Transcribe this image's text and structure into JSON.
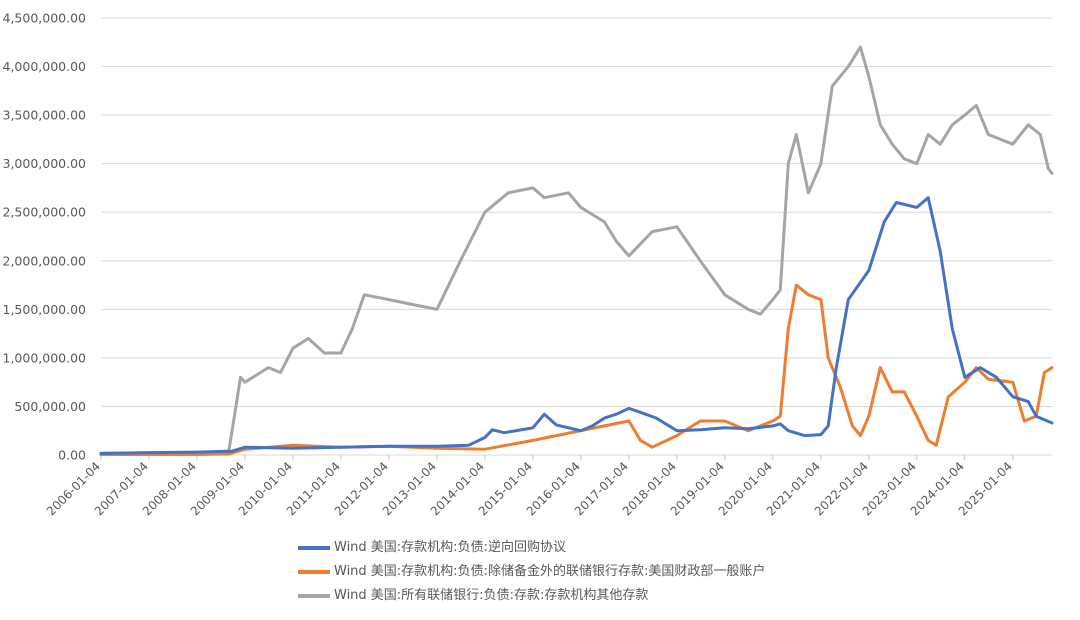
{
  "chart_data": {
    "type": "line",
    "title": "",
    "xlabel": "",
    "ylabel": "",
    "ylim": [
      0,
      4500000
    ],
    "yticks": [
      {
        "value": 0,
        "label": "0.00"
      },
      {
        "value": 500000,
        "label": "500,000.00"
      },
      {
        "value": 1000000,
        "label": "1,000,000.00"
      },
      {
        "value": 1500000,
        "label": "1,500,000.00"
      },
      {
        "value": 2000000,
        "label": "2,000,000.00"
      },
      {
        "value": 2500000,
        "label": "2,500,000.00"
      },
      {
        "value": 3000000,
        "label": "3,000,000.00"
      },
      {
        "value": 3500000,
        "label": "3,500,000.00"
      },
      {
        "value": 4000000,
        "label": "4,000,000.00"
      },
      {
        "value": 4500000,
        "label": "4,500,000.00"
      }
    ],
    "xlim": [
      "2006-01-04",
      "2025-10-29"
    ],
    "xticks": [
      "2006-01-04",
      "2007-01-04",
      "2008-01-04",
      "2009-01-04",
      "2010-01-04",
      "2011-01-04",
      "2012-01-04",
      "2013-01-04",
      "2014-01-04",
      "2015-01-04",
      "2016-01-04",
      "2017-01-04",
      "2018-01-04",
      "2019-01-04",
      "2020-01-04",
      "2021-01-04",
      "2022-01-04",
      "2023-01-04",
      "2024-01-04",
      "2025-01-04"
    ],
    "grid": "horizontal",
    "legend_position": "bottom",
    "series": [
      {
        "name": "Wind 美国:存款机构:负债:逆向回购协议",
        "color": "#4472C4",
        "points": [
          [
            "2006-01-04",
            15000
          ],
          [
            "2007-01-04",
            25000
          ],
          [
            "2008-01-04",
            30000
          ],
          [
            "2008-10-01",
            40000
          ],
          [
            "2009-01-04",
            80000
          ],
          [
            "2010-01-04",
            70000
          ],
          [
            "2011-01-04",
            80000
          ],
          [
            "2012-01-04",
            90000
          ],
          [
            "2013-01-04",
            90000
          ],
          [
            "2013-09-01",
            100000
          ],
          [
            "2014-01-04",
            180000
          ],
          [
            "2014-03-01",
            260000
          ],
          [
            "2014-06-01",
            230000
          ],
          [
            "2015-01-04",
            280000
          ],
          [
            "2015-04-01",
            420000
          ],
          [
            "2015-07-01",
            310000
          ],
          [
            "2016-01-04",
            250000
          ],
          [
            "2016-04-01",
            300000
          ],
          [
            "2016-07-01",
            380000
          ],
          [
            "2016-10-01",
            420000
          ],
          [
            "2017-01-04",
            480000
          ],
          [
            "2017-04-01",
            440000
          ],
          [
            "2017-08-01",
            380000
          ],
          [
            "2018-01-04",
            250000
          ],
          [
            "2018-07-01",
            260000
          ],
          [
            "2019-01-04",
            280000
          ],
          [
            "2019-07-01",
            270000
          ],
          [
            "2020-01-04",
            300000
          ],
          [
            "2020-03-01",
            320000
          ],
          [
            "2020-05-01",
            250000
          ],
          [
            "2020-09-01",
            200000
          ],
          [
            "2021-01-04",
            210000
          ],
          [
            "2021-03-01",
            300000
          ],
          [
            "2021-05-01",
            900000
          ],
          [
            "2021-08-01",
            1600000
          ],
          [
            "2022-01-04",
            1900000
          ],
          [
            "2022-05-01",
            2400000
          ],
          [
            "2022-08-01",
            2600000
          ],
          [
            "2023-01-04",
            2550000
          ],
          [
            "2023-04-01",
            2650000
          ],
          [
            "2023-07-01",
            2100000
          ],
          [
            "2023-10-01",
            1300000
          ],
          [
            "2024-01-04",
            800000
          ],
          [
            "2024-05-01",
            900000
          ],
          [
            "2024-09-01",
            800000
          ],
          [
            "2025-01-04",
            600000
          ],
          [
            "2025-05-01",
            550000
          ],
          [
            "2025-07-01",
            400000
          ],
          [
            "2025-10-29",
            330000
          ]
        ]
      },
      {
        "name": "Wind 美国:存款机构:负债:除储备金外的联储银行存款:美国财政部一般账户",
        "color": "#ED7D31",
        "points": [
          [
            "2006-01-04",
            5000
          ],
          [
            "2007-01-04",
            5000
          ],
          [
            "2008-01-04",
            5000
          ],
          [
            "2008-09-01",
            10000
          ],
          [
            "2009-01-04",
            60000
          ],
          [
            "2010-01-04",
            100000
          ],
          [
            "2011-01-04",
            80000
          ],
          [
            "2012-01-04",
            90000
          ],
          [
            "2013-01-04",
            70000
          ],
          [
            "2014-01-04",
            60000
          ],
          [
            "2015-01-04",
            150000
          ],
          [
            "2015-07-01",
            200000
          ],
          [
            "2016-01-04",
            250000
          ],
          [
            "2016-07-01",
            300000
          ],
          [
            "2017-01-04",
            350000
          ],
          [
            "2017-04-01",
            150000
          ],
          [
            "2017-07-01",
            80000
          ],
          [
            "2018-01-04",
            200000
          ],
          [
            "2018-07-01",
            350000
          ],
          [
            "2019-01-04",
            350000
          ],
          [
            "2019-07-01",
            250000
          ],
          [
            "2020-01-04",
            350000
          ],
          [
            "2020-03-01",
            400000
          ],
          [
            "2020-05-01",
            1300000
          ],
          [
            "2020-07-01",
            1750000
          ],
          [
            "2020-10-01",
            1650000
          ],
          [
            "2021-01-04",
            1600000
          ],
          [
            "2021-03-01",
            1000000
          ],
          [
            "2021-06-01",
            700000
          ],
          [
            "2021-09-01",
            300000
          ],
          [
            "2021-11-01",
            200000
          ],
          [
            "2022-01-04",
            400000
          ],
          [
            "2022-04-01",
            900000
          ],
          [
            "2022-07-01",
            650000
          ],
          [
            "2022-10-01",
            650000
          ],
          [
            "2023-01-04",
            400000
          ],
          [
            "2023-04-01",
            150000
          ],
          [
            "2023-06-01",
            100000
          ],
          [
            "2023-09-01",
            600000
          ],
          [
            "2024-01-04",
            750000
          ],
          [
            "2024-04-01",
            900000
          ],
          [
            "2024-07-01",
            780000
          ],
          [
            "2025-01-04",
            750000
          ],
          [
            "2025-04-01",
            350000
          ],
          [
            "2025-07-01",
            400000
          ],
          [
            "2025-09-01",
            850000
          ],
          [
            "2025-10-29",
            900000
          ]
        ]
      },
      {
        "name": "Wind 美国:所有联储银行:负债:存款:存款机构其他存款",
        "color": "#A5A5A5",
        "points": [
          [
            "2006-01-04",
            20000
          ],
          [
            "2007-01-04",
            20000
          ],
          [
            "2008-01-04",
            25000
          ],
          [
            "2008-09-01",
            30000
          ],
          [
            "2008-10-15",
            400000
          ],
          [
            "2008-12-01",
            800000
          ],
          [
            "2009-01-04",
            750000
          ],
          [
            "2009-07-01",
            900000
          ],
          [
            "2009-10-01",
            850000
          ],
          [
            "2010-01-04",
            1100000
          ],
          [
            "2010-05-01",
            1200000
          ],
          [
            "2010-09-01",
            1050000
          ],
          [
            "2011-01-04",
            1050000
          ],
          [
            "2011-04-01",
            1300000
          ],
          [
            "2011-07-01",
            1650000
          ],
          [
            "2012-01-04",
            1600000
          ],
          [
            "2012-07-01",
            1550000
          ],
          [
            "2013-01-04",
            1500000
          ],
          [
            "2013-07-01",
            2000000
          ],
          [
            "2014-01-04",
            2500000
          ],
          [
            "2014-07-01",
            2700000
          ],
          [
            "2015-01-04",
            2750000
          ],
          [
            "2015-04-01",
            2650000
          ],
          [
            "2015-10-01",
            2700000
          ],
          [
            "2016-01-04",
            2550000
          ],
          [
            "2016-07-01",
            2400000
          ],
          [
            "2016-10-01",
            2200000
          ],
          [
            "2017-01-04",
            2050000
          ],
          [
            "2017-07-01",
            2300000
          ],
          [
            "2018-01-04",
            2350000
          ],
          [
            "2018-07-01",
            2000000
          ],
          [
            "2019-01-04",
            1650000
          ],
          [
            "2019-07-01",
            1500000
          ],
          [
            "2019-10-01",
            1450000
          ],
          [
            "2020-01-04",
            1600000
          ],
          [
            "2020-03-01",
            1700000
          ],
          [
            "2020-05-01",
            3000000
          ],
          [
            "2020-07-01",
            3300000
          ],
          [
            "2020-10-01",
            2700000
          ],
          [
            "2021-01-04",
            3000000
          ],
          [
            "2021-04-01",
            3800000
          ],
          [
            "2021-08-01",
            4000000
          ],
          [
            "2021-11-01",
            4200000
          ],
          [
            "2022-01-04",
            3900000
          ],
          [
            "2022-04-01",
            3400000
          ],
          [
            "2022-07-01",
            3200000
          ],
          [
            "2022-10-01",
            3050000
          ],
          [
            "2023-01-04",
            3000000
          ],
          [
            "2023-04-01",
            3300000
          ],
          [
            "2023-07-01",
            3200000
          ],
          [
            "2023-10-01",
            3400000
          ],
          [
            "2024-01-04",
            3500000
          ],
          [
            "2024-04-01",
            3600000
          ],
          [
            "2024-07-01",
            3300000
          ],
          [
            "2025-01-04",
            3200000
          ],
          [
            "2025-05-01",
            3400000
          ],
          [
            "2025-08-01",
            3300000
          ],
          [
            "2025-10-01",
            2950000
          ],
          [
            "2025-10-29",
            2900000
          ]
        ]
      }
    ]
  }
}
